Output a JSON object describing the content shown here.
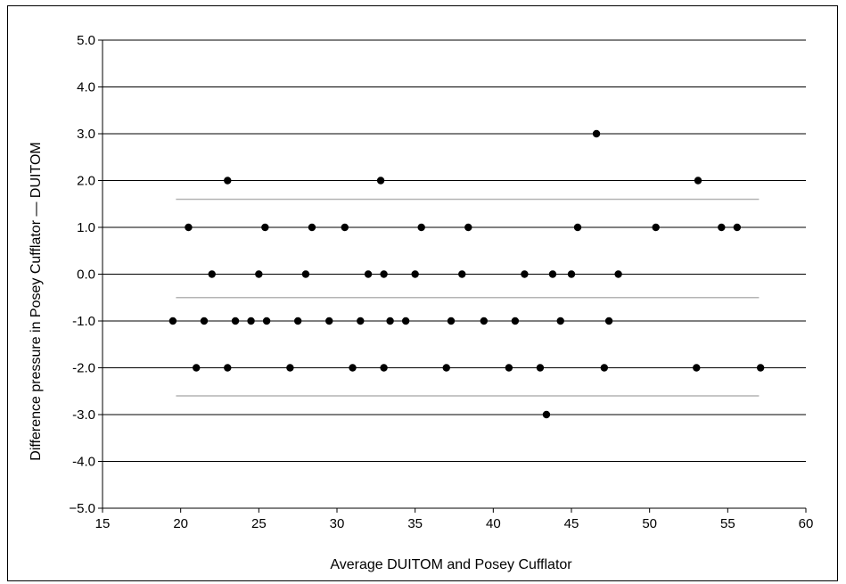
{
  "chart_data": {
    "type": "scatter",
    "title": "",
    "xlabel": "Average DUITOM and Posey Cufflator",
    "ylabel": "Difference pressure in Posey Cufflator — DUITOM",
    "xlim": [
      15,
      60
    ],
    "ylim": [
      -5,
      5
    ],
    "xticks": [
      15,
      20,
      25,
      30,
      35,
      40,
      45,
      50,
      55,
      60
    ],
    "xtick_labels": [
      "15",
      "20",
      "25",
      "30",
      "35",
      "40",
      "45",
      "50",
      "55",
      "60"
    ],
    "yticks": [
      5,
      4,
      3,
      2,
      1,
      0,
      -1,
      -2,
      -3,
      -4,
      -5
    ],
    "ytick_labels": [
      "5.0",
      "4.0",
      "3.0",
      "2.0",
      "1.0",
      "0.0",
      "-1.0",
      "-2.0",
      "-3.0",
      "-4.0",
      "−5.0"
    ],
    "grid": "horizontal",
    "reference_lines": [
      {
        "kind": "upper limit of agreement",
        "y": 1.6,
        "x_range": [
          19.7,
          57
        ]
      },
      {
        "kind": "mean difference",
        "y": -0.5,
        "x_range": [
          19.7,
          57
        ]
      },
      {
        "kind": "lower limit of agreement",
        "y": -2.6,
        "x_range": [
          19.7,
          57
        ]
      }
    ],
    "points": [
      {
        "x": 23.0,
        "y": 2
      },
      {
        "x": 32.8,
        "y": 2
      },
      {
        "x": 53.1,
        "y": 2
      },
      {
        "x": 46.6,
        "y": 3
      },
      {
        "x": 20.5,
        "y": 1
      },
      {
        "x": 25.4,
        "y": 1
      },
      {
        "x": 28.4,
        "y": 1
      },
      {
        "x": 30.5,
        "y": 1
      },
      {
        "x": 35.4,
        "y": 1
      },
      {
        "x": 38.4,
        "y": 1
      },
      {
        "x": 45.4,
        "y": 1
      },
      {
        "x": 50.4,
        "y": 1
      },
      {
        "x": 54.6,
        "y": 1
      },
      {
        "x": 55.6,
        "y": 1
      },
      {
        "x": 22.0,
        "y": 0
      },
      {
        "x": 25.0,
        "y": 0
      },
      {
        "x": 28.0,
        "y": 0
      },
      {
        "x": 32.0,
        "y": 0
      },
      {
        "x": 33.0,
        "y": 0
      },
      {
        "x": 35.0,
        "y": 0
      },
      {
        "x": 38.0,
        "y": 0
      },
      {
        "x": 42.0,
        "y": 0
      },
      {
        "x": 43.8,
        "y": 0
      },
      {
        "x": 45.0,
        "y": 0
      },
      {
        "x": 48.0,
        "y": 0
      },
      {
        "x": 19.5,
        "y": -1
      },
      {
        "x": 21.5,
        "y": -1
      },
      {
        "x": 23.5,
        "y": -1
      },
      {
        "x": 24.5,
        "y": -1
      },
      {
        "x": 25.5,
        "y": -1
      },
      {
        "x": 27.5,
        "y": -1
      },
      {
        "x": 29.5,
        "y": -1
      },
      {
        "x": 31.5,
        "y": -1
      },
      {
        "x": 33.4,
        "y": -1
      },
      {
        "x": 34.4,
        "y": -1
      },
      {
        "x": 37.3,
        "y": -1
      },
      {
        "x": 39.4,
        "y": -1
      },
      {
        "x": 41.4,
        "y": -1
      },
      {
        "x": 44.3,
        "y": -1
      },
      {
        "x": 47.4,
        "y": -1
      },
      {
        "x": 21.0,
        "y": -2
      },
      {
        "x": 23.0,
        "y": -2
      },
      {
        "x": 27.0,
        "y": -2
      },
      {
        "x": 31.0,
        "y": -2
      },
      {
        "x": 33.0,
        "y": -2
      },
      {
        "x": 37.0,
        "y": -2
      },
      {
        "x": 41.0,
        "y": -2
      },
      {
        "x": 43.0,
        "y": -2
      },
      {
        "x": 47.1,
        "y": -2
      },
      {
        "x": 53.0,
        "y": -2
      },
      {
        "x": 57.1,
        "y": -2
      },
      {
        "x": 43.4,
        "y": -3
      }
    ],
    "colors": {
      "points": "#000000",
      "grid": "#000000",
      "reference_lines": "#b4b4b4",
      "axis": "#000000"
    }
  }
}
